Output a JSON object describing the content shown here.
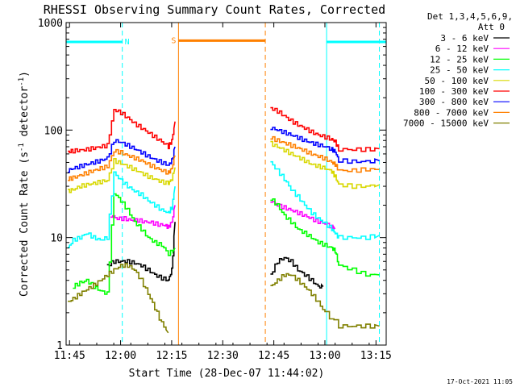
{
  "chart_data": {
    "type": "line",
    "title": "RHESSI Observing Summary Count Rates, Corrected",
    "xlabel": "Start Time (28-Dec-07 11:44:02)",
    "ylabel_main": "Corrected Count Rate (s",
    "ylabel_sup1": "-1",
    "ylabel_mid": " detector",
    "ylabel_sup2": "-1",
    "ylabel_end": ")",
    "yscale": "log",
    "ylim": [
      1,
      1000
    ],
    "xlim_minutes": [
      0,
      94
    ],
    "x_unit": "minutes after 11:44:02",
    "x_ticks": [
      {
        "label": "11:45",
        "t": 1
      },
      {
        "label": "12:00",
        "t": 16
      },
      {
        "label": "12:15",
        "t": 31
      },
      {
        "label": "12:30",
        "t": 46
      },
      {
        "label": "12:45",
        "t": 61
      },
      {
        "label": "13:00",
        "t": 76
      },
      {
        "label": "13:15",
        "t": 91
      }
    ],
    "y_ticks": [
      {
        "label": "1",
        "v": 1
      },
      {
        "label": "10",
        "v": 10
      },
      {
        "label": "100",
        "v": 100
      },
      {
        "label": "1000",
        "v": 1000
      }
    ],
    "legend_header": [
      "Det 1,3,4,5,6,9,",
      "Att 0"
    ],
    "legend": [
      {
        "label": "3 - 6 keV",
        "color": "#000000"
      },
      {
        "label": "6 - 12 keV",
        "color": "#ff00ff"
      },
      {
        "label": "12 - 25 keV",
        "color": "#00ff00"
      },
      {
        "label": "25 - 50 keV",
        "color": "#00ffff"
      },
      {
        "label": "50 - 100 keV",
        "color": "#d8d800"
      },
      {
        "label": "100 - 300 keV",
        "color": "#ff0000"
      },
      {
        "label": "300 - 800 keV",
        "color": "#0000ff"
      },
      {
        "label": "800 - 7000 keV",
        "color": "#ff8000"
      },
      {
        "label": "7000 - 15000 keV",
        "color": "#808000"
      }
    ],
    "flag_bars": [
      {
        "label": "",
        "color": "#00ffff",
        "t0": 0,
        "t1": 16.5,
        "v": 660
      },
      {
        "label": "N",
        "color": "#00ffff",
        "t0": 16.5,
        "t1": 16.5,
        "v": 660
      },
      {
        "label": "",
        "color": "#00ffff",
        "t0": 76.5,
        "t1": 94,
        "v": 660
      },
      {
        "label": "S",
        "color": "#ff8000",
        "t0": 33,
        "t1": 58.5,
        "v": 680
      }
    ],
    "vertical_markers": [
      {
        "t": 16.5,
        "color": "#00ffff",
        "style": "dashed"
      },
      {
        "t": 76.5,
        "color": "#00ffff",
        "style": "solid"
      },
      {
        "t": 92,
        "color": "#00ffff",
        "style": "dashed"
      },
      {
        "t": 33,
        "color": "#ff8000",
        "style": "solid"
      },
      {
        "t": 58.5,
        "color": "#ff8000",
        "style": "dashed"
      }
    ],
    "series": [
      {
        "name": "3 - 6 keV",
        "color": "#000000",
        "segments": [
          {
            "t": [
              12,
              14,
              16,
              18,
              20,
              22,
              24,
              26,
              28,
              30,
              31,
              32
            ],
            "v": [
              5.5,
              6.0,
              6.0,
              6.0,
              5.8,
              5.5,
              5.0,
              4.5,
              4.2,
              4.0,
              5.0,
              14.0
            ]
          },
          {
            "t": [
              60,
              62,
              64,
              66,
              68,
              70,
              72,
              74,
              75.5
            ],
            "v": [
              4.5,
              6.0,
              6.5,
              6.0,
              5.0,
              4.5,
              4.0,
              3.5,
              3.5
            ]
          }
        ]
      },
      {
        "name": "6 - 12 keV",
        "color": "#ff00ff",
        "segments": [
          {
            "t": [
              13,
              15,
              17,
              19,
              21,
              23,
              25,
              27,
              29,
              30,
              31,
              32
            ],
            "v": [
              16,
              15,
              15,
              14.5,
              14.5,
              14,
              13.8,
              13.2,
              13,
              12.5,
              14,
              20
            ]
          },
          {
            "t": [
              60,
              62,
              64,
              66,
              68,
              70,
              72,
              74,
              76,
              78,
              79
            ],
            "v": [
              22,
              20,
              19,
              18,
              17,
              16,
              15,
              14,
              13.5,
              12.5,
              12
            ]
          }
        ]
      },
      {
        "name": "12 - 25 keV",
        "color": "#00ff00",
        "segments": [
          {
            "t": [
              2,
              4,
              6,
              8,
              10,
              12,
              14,
              16,
              18,
              20,
              22,
              24,
              26,
              28,
              30,
              32
            ],
            "v": [
              3.5,
              3.8,
              4.0,
              3.5,
              3.2,
              3.0,
              26,
              22,
              18,
              14,
              12,
              10,
              9,
              8.5,
              7.0,
              8.0
            ]
          },
          {
            "t": [
              60,
              62,
              64,
              66,
              68,
              70,
              72,
              74,
              76,
              78,
              79,
              80,
              84,
              88,
              92
            ],
            "v": [
              23,
              20,
              16,
              14,
              12,
              11,
              10,
              9.0,
              8.5,
              8.0,
              7.5,
              5.5,
              5.0,
              4.5,
              4.5
            ]
          }
        ]
      },
      {
        "name": "25 - 50 keV",
        "color": "#00ffff",
        "segments": [
          {
            "t": [
              0.5,
              2,
              4,
              6,
              8,
              10,
              12,
              14,
              16,
              18,
              20,
              22,
              24,
              26,
              28,
              30,
              31,
              32
            ],
            "v": [
              8,
              9.5,
              10,
              11,
              10,
              9.5,
              10,
              40,
              34,
              30,
              27,
              25,
              22,
              20,
              18,
              17,
              19,
              30
            ]
          },
          {
            "t": [
              60,
              62,
              64,
              66,
              68,
              70,
              72,
              74,
              76,
              78,
              79,
              80,
              84,
              88,
              92
            ],
            "v": [
              50,
              42,
              35,
              28,
              24,
              20,
              17,
              15,
              13.5,
              12,
              11,
              10,
              10,
              10,
              10.5
            ]
          }
        ]
      },
      {
        "name": "50 - 100 keV",
        "color": "#d8d800",
        "segments": [
          {
            "t": [
              0.5,
              2,
              4,
              6,
              8,
              10,
              12,
              14,
              16,
              18,
              20,
              22,
              24,
              26,
              28,
              30,
              31,
              32
            ],
            "v": [
              27,
              28,
              30,
              31,
              32,
              33,
              34,
              52,
              49,
              46,
              43,
              40,
              37,
              35,
              33,
              32,
              35,
              45
            ]
          },
          {
            "t": [
              60,
              62,
              64,
              66,
              68,
              70,
              72,
              74,
              76,
              78,
              79,
              80,
              84,
              88,
              92
            ],
            "v": [
              75,
              70,
              65,
              60,
              56,
              52,
              48,
              46,
              44,
              41,
              37,
              31,
              30,
              30,
              31
            ]
          }
        ]
      },
      {
        "name": "100 - 300 keV",
        "color": "#ff0000",
        "segments": [
          {
            "t": [
              0.5,
              2,
              4,
              6,
              8,
              10,
              12,
              14,
              16,
              18,
              20,
              22,
              24,
              26,
              28,
              30,
              31,
              32
            ],
            "v": [
              63,
              64,
              65,
              66,
              68,
              70,
              72,
              155,
              145,
              130,
              115,
              105,
              95,
              86,
              78,
              70,
              80,
              120
            ]
          },
          {
            "t": [
              60,
              62,
              64,
              66,
              68,
              70,
              72,
              74,
              76,
              78,
              79,
              80,
              84,
              88,
              92
            ],
            "v": [
              160,
              150,
              135,
              122,
              112,
              104,
              96,
              90,
              86,
              82,
              78,
              66,
              66,
              66,
              67
            ]
          }
        ]
      },
      {
        "name": "300 - 800 keV",
        "color": "#0000ff",
        "segments": [
          {
            "t": [
              0.5,
              2,
              4,
              6,
              8,
              10,
              12,
              14,
              16,
              18,
              20,
              22,
              24,
              26,
              28,
              30,
              31,
              32
            ],
            "v": [
              42,
              44,
              46,
              48,
              50,
              52,
              55,
              80,
              77,
              72,
              67,
              62,
              57,
              53,
              50,
              47,
              52,
              70
            ]
          },
          {
            "t": [
              60,
              62,
              64,
              66,
              68,
              70,
              72,
              74,
              76,
              78,
              79,
              80,
              84,
              88,
              92
            ],
            "v": [
              105,
              100,
              95,
              90,
              85,
              80,
              76,
              73,
              70,
              66,
              63,
              52,
              51,
              51,
              52
            ]
          }
        ]
      },
      {
        "name": "800 - 7000 keV",
        "color": "#ff8000",
        "segments": [
          {
            "t": [
              0.5,
              2,
              4,
              6,
              8,
              10,
              12,
              14,
              16,
              18,
              20,
              22,
              24,
              26,
              28,
              30,
              31,
              32
            ],
            "v": [
              35,
              36,
              38,
              40,
              42,
              44,
              46,
              64,
              62,
              58,
              55,
              52,
              48,
              45,
              42,
              40,
              44,
              58
            ]
          },
          {
            "t": [
              60,
              62,
              64,
              66,
              68,
              70,
              72,
              74,
              76,
              78,
              79,
              80,
              84,
              88,
              92
            ],
            "v": [
              85,
              80,
              76,
              72,
              68,
              64,
              60,
              57,
              54,
              50,
              48,
              42,
              42,
              43,
              43
            ]
          }
        ]
      },
      {
        "name": "7000 - 15000 keV",
        "color": "#808000",
        "segments": [
          {
            "t": [
              0.5,
              2,
              4,
              6,
              8,
              10,
              12,
              14,
              16,
              18,
              20,
              22,
              24,
              26,
              28,
              30
            ],
            "v": [
              2.5,
              2.7,
              3.0,
              3.3,
              3.6,
              4.0,
              4.5,
              5.0,
              5.5,
              5.5,
              5.0,
              4.0,
              3.0,
              2.2,
              1.6,
              1.3
            ]
          },
          {
            "t": [
              60,
              62,
              64,
              66,
              68,
              70,
              72,
              74,
              76,
              80,
              84,
              88,
              92
            ],
            "v": [
              3.5,
              4.0,
              4.5,
              4.5,
              4.0,
              3.5,
              3.0,
              2.5,
              2.0,
              1.5,
              1.5,
              1.5,
              1.5
            ]
          }
        ]
      }
    ],
    "footer_date": "17-Oct-2021 11:05"
  }
}
